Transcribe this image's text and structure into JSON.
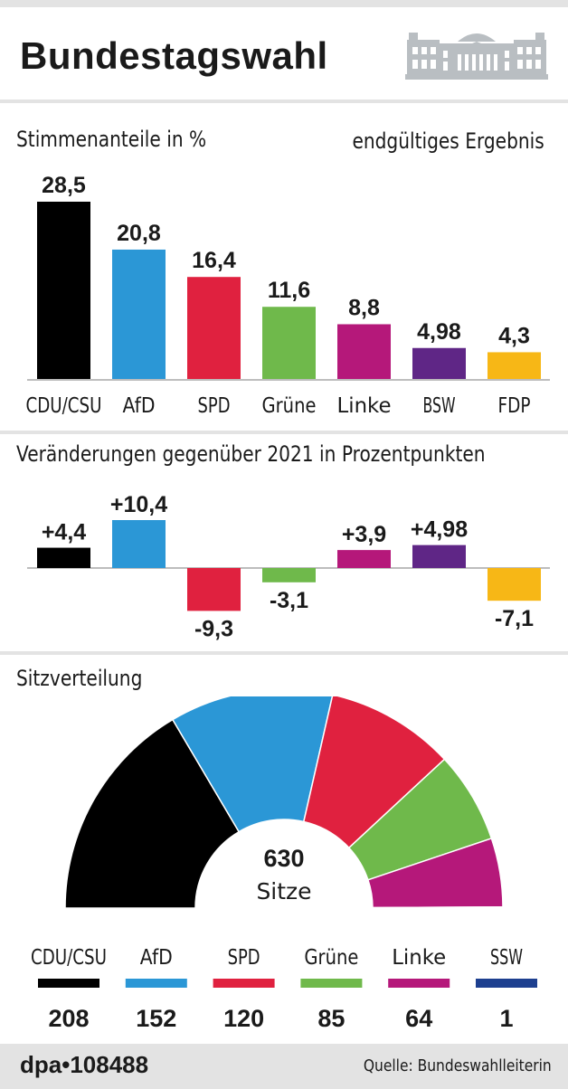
{
  "header": {
    "title": "Bundestagswahl",
    "logo_icon": "reichstag-building-icon"
  },
  "section_shares": {
    "title": "Stimmenanteile in %",
    "note": "endgültiges Ergebnis"
  },
  "section_changes": {
    "title": "Veränderungen gegenüber 2021 in Prozentpunkten"
  },
  "section_seats": {
    "title": "Sitzverteilung",
    "total": "630",
    "total_label": "Sitze"
  },
  "footer": {
    "id": "dpa•108488",
    "source": "Quelle: Bundeswahlleiterin"
  },
  "chart_data": [
    {
      "type": "bar",
      "title": "Stimmenanteile in %",
      "categories": [
        "CDU/CSU",
        "AfD",
        "SPD",
        "Grüne",
        "Linke",
        "BSW",
        "FDP"
      ],
      "values": [
        28.5,
        20.8,
        16.4,
        11.6,
        8.8,
        4.98,
        4.3
      ],
      "value_labels": [
        "28,5",
        "20,8",
        "16,4",
        "11,6",
        "8,8",
        "4,98",
        "4,3"
      ],
      "colors": [
        "#000000",
        "#2b97d6",
        "#e0213f",
        "#6fb94b",
        "#b5187a",
        "#5f2686",
        "#f7b716"
      ]
    },
    {
      "type": "bar",
      "title": "Veränderungen gegenüber 2021 in Prozentpunkten",
      "categories": [
        "CDU/CSU",
        "AfD",
        "SPD",
        "Grüne",
        "Linke",
        "BSW",
        "FDP"
      ],
      "values": [
        4.4,
        10.4,
        -9.3,
        -3.1,
        3.9,
        4.98,
        -7.1
      ],
      "value_labels": [
        "+4,4",
        "+10,4",
        "-9,3",
        "-3,1",
        "+3,9",
        "+4,98",
        "-7,1"
      ],
      "colors": [
        "#000000",
        "#2b97d6",
        "#e0213f",
        "#6fb94b",
        "#b5187a",
        "#5f2686",
        "#f7b716"
      ]
    },
    {
      "type": "pie",
      "title": "Sitzverteilung",
      "categories": [
        "CDU/CSU",
        "AfD",
        "SPD",
        "Grüne",
        "Linke",
        "SSW"
      ],
      "values": [
        208,
        152,
        120,
        85,
        64,
        1
      ],
      "colors": [
        "#000000",
        "#2b97d6",
        "#e0213f",
        "#6fb94b",
        "#b5187a",
        "#1d3f8f"
      ],
      "total": 630
    }
  ]
}
